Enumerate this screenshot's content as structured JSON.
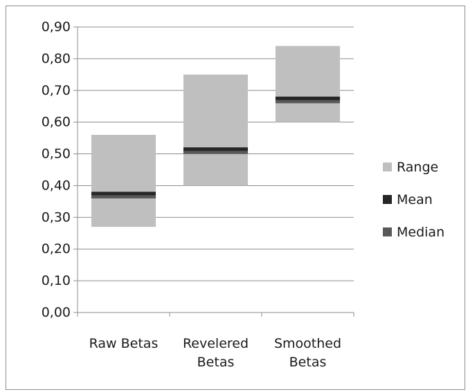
{
  "chart_data": {
    "type": "bar",
    "subtype": "floating-range",
    "title": "",
    "xlabel": "",
    "ylabel": "",
    "ylim": [
      0,
      0.9
    ],
    "y_ticks": [
      0.0,
      0.1,
      0.2,
      0.3,
      0.4,
      0.5,
      0.6,
      0.7,
      0.8,
      0.9
    ],
    "y_tick_labels": [
      "0,00",
      "0,10",
      "0,20",
      "0,30",
      "0,40",
      "0,50",
      "0,60",
      "0,70",
      "0,80",
      "0,90"
    ],
    "grid": true,
    "legend_position": "right",
    "categories": [
      {
        "lines": [
          "Raw Betas"
        ]
      },
      {
        "lines": [
          "Revelered",
          "Betas"
        ]
      },
      {
        "lines": [
          "Smoothed",
          "Betas"
        ]
      }
    ],
    "series": [
      {
        "name": "Range",
        "color": "#bfbfbf",
        "low": [
          0.27,
          0.4,
          0.6
        ],
        "high": [
          0.56,
          0.75,
          0.84
        ]
      },
      {
        "name": "Mean",
        "color": "#262626",
        "values": [
          0.375,
          0.515,
          0.675
        ]
      },
      {
        "name": "Median",
        "color": "#595959",
        "values": [
          0.365,
          0.505,
          0.665
        ]
      }
    ]
  }
}
